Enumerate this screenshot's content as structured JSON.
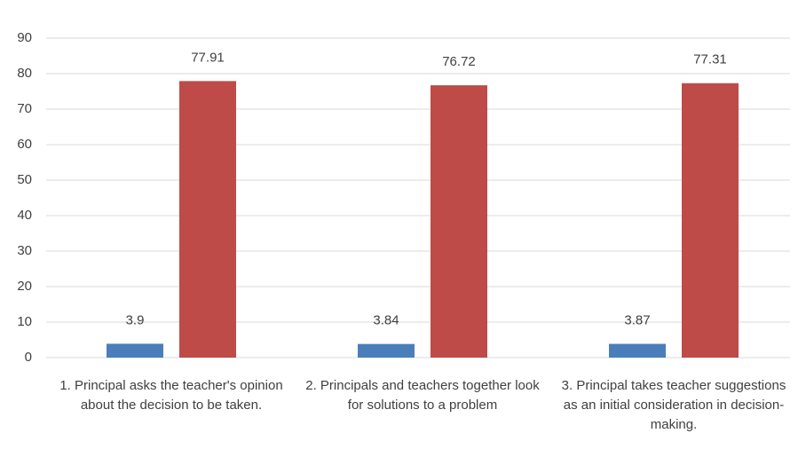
{
  "chart_data": {
    "type": "bar",
    "categories": [
      "1. Principal asks the teacher's opinion about the decision to be taken.",
      "2. Principals and teachers together look for solutions to a problem",
      "3. Principal takes teacher suggestions as an initial consideration in decision-making."
    ],
    "series": [
      {
        "color": "#4a7ebb",
        "values": [
          3.9,
          3.84,
          3.87
        ]
      },
      {
        "color": "#be4b48",
        "values": [
          77.91,
          76.72,
          77.31
        ]
      }
    ],
    "ylim": [
      0,
      90
    ],
    "yticks": [
      0,
      10,
      20,
      30,
      40,
      50,
      60,
      70,
      80,
      90
    ],
    "grid": true
  }
}
